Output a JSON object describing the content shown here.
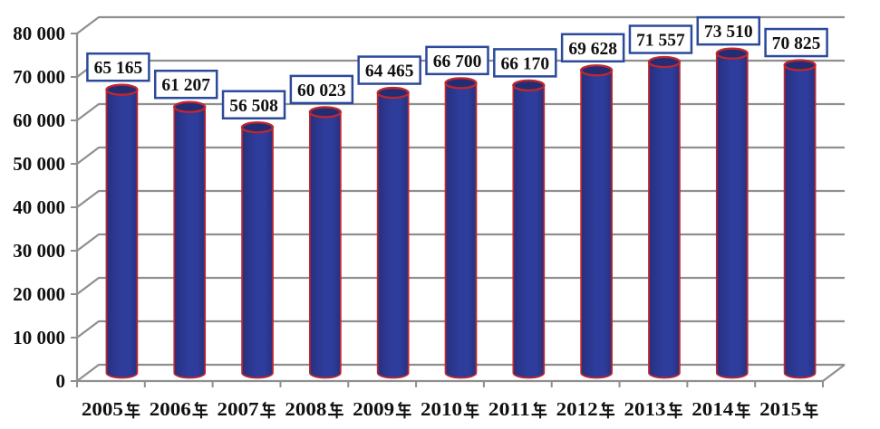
{
  "chart_data": {
    "type": "bar",
    "subtype": "3d-cylinder-column",
    "title": "",
    "xlabel": "",
    "ylabel": "",
    "categories": [
      "2005年",
      "2006年",
      "2007年",
      "2008年",
      "2009年",
      "2010年",
      "2011年",
      "2012年",
      "2013年",
      "2014年",
      "2015年"
    ],
    "values": [
      65165,
      61207,
      56508,
      60023,
      64465,
      66700,
      66170,
      69628,
      71557,
      73510,
      70825
    ],
    "data_labels": [
      "65 165",
      "61 207",
      "56 508",
      "60 023",
      "64 465",
      "66 700",
      "66 170",
      "69 628",
      "71 557",
      "73 510",
      "70 825"
    ],
    "y_tick_labels": [
      "80 000",
      "70 000",
      "60 000",
      "50 000",
      "40 000",
      "30 000",
      "20 000",
      "10 000",
      "0"
    ],
    "ylim": [
      0,
      80000
    ],
    "y_step": 10000,
    "grid": true,
    "legend_position": "none",
    "colors": {
      "background": "#ffffff",
      "bar_fill": "#2e3c9b",
      "bar_fill_dark": "#27307e",
      "bar_top_fill": "#242d74",
      "bar_outline": "#c1272d",
      "gridline": "#8f8f8f",
      "axis": "#8f8f8f",
      "label_box_border": "#2b4a9c",
      "label_box_fill": "#ffffff",
      "text": "#111111"
    }
  }
}
